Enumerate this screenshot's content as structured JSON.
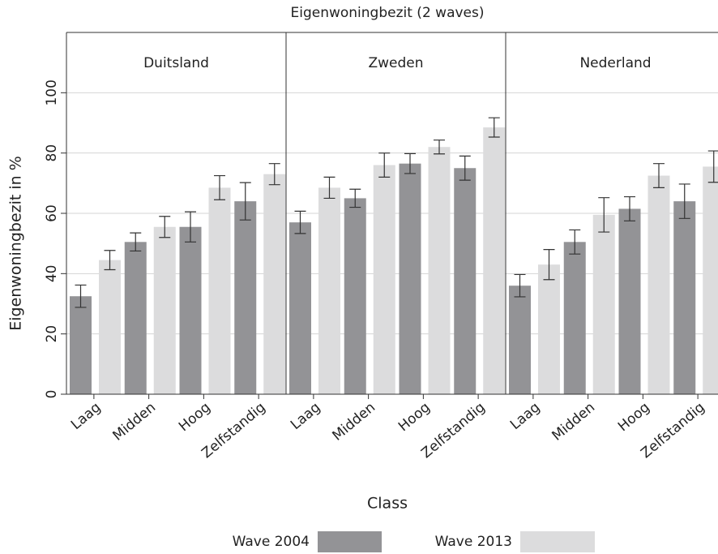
{
  "chart_data": {
    "type": "bar",
    "title": "Eigenwoningbezit (2 waves)",
    "x_label": "Class",
    "y_label": "Eigenwoningbezit in %",
    "ylim": [
      0,
      120
    ],
    "yticks": [
      0,
      20,
      40,
      60,
      80,
      100
    ],
    "grid": true,
    "legend": "bottom",
    "series": [
      {
        "name": "Wave 2004",
        "color": "#939396"
      },
      {
        "name": "Wave 2013",
        "color": "#dcdcdd"
      }
    ],
    "panels": [
      {
        "title": "Duitsland",
        "categories": [
          "Laag",
          "Midden",
          "Hoog",
          "Zelfstandig"
        ],
        "values": [
          [
            32.5,
            50.5,
            55.5,
            64
          ],
          [
            44.5,
            55.5,
            68.5,
            73
          ]
        ],
        "errors": [
          [
            3.7,
            3,
            5,
            6.2
          ],
          [
            3.2,
            3.5,
            4,
            3.5
          ]
        ]
      },
      {
        "title": "Zweden",
        "categories": [
          "Laag",
          "Midden",
          "Hoog",
          "Zelfstandig"
        ],
        "values": [
          [
            57,
            65,
            76.5,
            75
          ],
          [
            68.5,
            76,
            82,
            88.5
          ]
        ],
        "errors": [
          [
            3.7,
            3,
            3.3,
            4
          ],
          [
            3.5,
            4,
            2.3,
            3.2
          ]
        ]
      },
      {
        "title": "Nederland",
        "categories": [
          "Laag",
          "Midden",
          "Hoog",
          "Zelfstandig"
        ],
        "values": [
          [
            36,
            50.5,
            61.5,
            64
          ],
          [
            43,
            59.5,
            72.5,
            75.5
          ]
        ],
        "errors": [
          [
            3.7,
            4,
            4,
            5.7
          ],
          [
            5,
            5.7,
            4,
            5.2
          ]
        ]
      }
    ]
  }
}
